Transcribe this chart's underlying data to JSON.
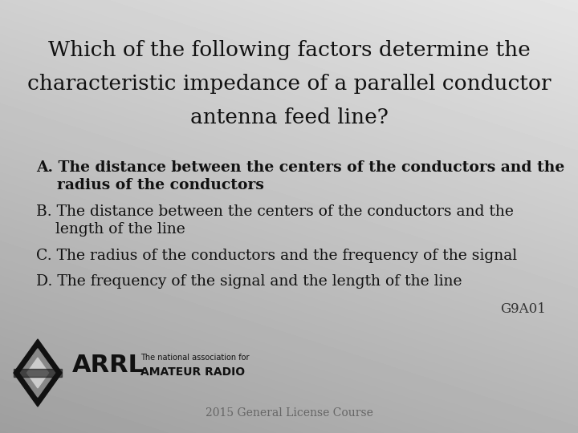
{
  "title_line1": "Which of the following factors determine the",
  "title_line2": "characteristic impedance of a parallel conductor",
  "title_line3": "antenna feed line?",
  "title_fontsize": 19,
  "title_color": "#111111",
  "answer_A_line1": "A. The distance between the centers of the conductors and the",
  "answer_A_line2": "    radius of the conductors",
  "answer_B_line1": "B. The distance between the centers of the conductors and the",
  "answer_B_line2": "    length of the line",
  "answer_C": "C. The radius of the conductors and the frequency of the signal",
  "answer_D": "D. The frequency of the signal and the length of the line",
  "answer_fontsize": 13.5,
  "code": "G9A01",
  "code_fontsize": 12,
  "footer": "2015 General License Course",
  "footer_fontsize": 10,
  "arrl_text": "ARRL",
  "arrl_sub1": "The national association for",
  "arrl_sub2": "AMATEUR RADIO"
}
